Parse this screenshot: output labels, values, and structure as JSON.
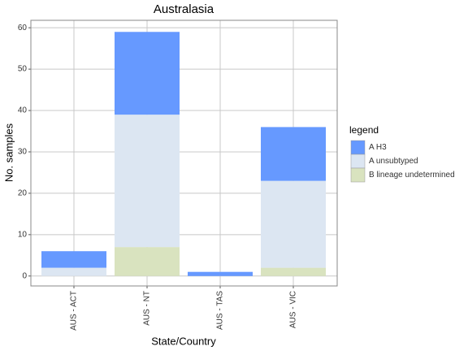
{
  "chart_data": {
    "type": "stacked_bar",
    "title": "Australasia",
    "x_label": "State/Country",
    "y_label": "No. samples",
    "categories": [
      "AUS - ACT",
      "AUS - NT",
      "AUS - TAS",
      "AUS - VIC"
    ],
    "series": [
      {
        "name": "B lineage undetermined",
        "color": "#d9e3bf",
        "values": [
          0,
          7,
          0,
          2
        ]
      },
      {
        "name": "A unsubtyped",
        "color": "#dce6f2",
        "values": [
          2,
          32,
          0,
          21
        ]
      },
      {
        "name": "A H3",
        "color": "#6699ff",
        "values": [
          4,
          20,
          1,
          13
        ]
      }
    ],
    "legend_title": "legend",
    "ylim": [
      -2.4,
      61.8
    ],
    "yticks": [
      0,
      10,
      20,
      30,
      40,
      50,
      60
    ],
    "grid": true
  }
}
